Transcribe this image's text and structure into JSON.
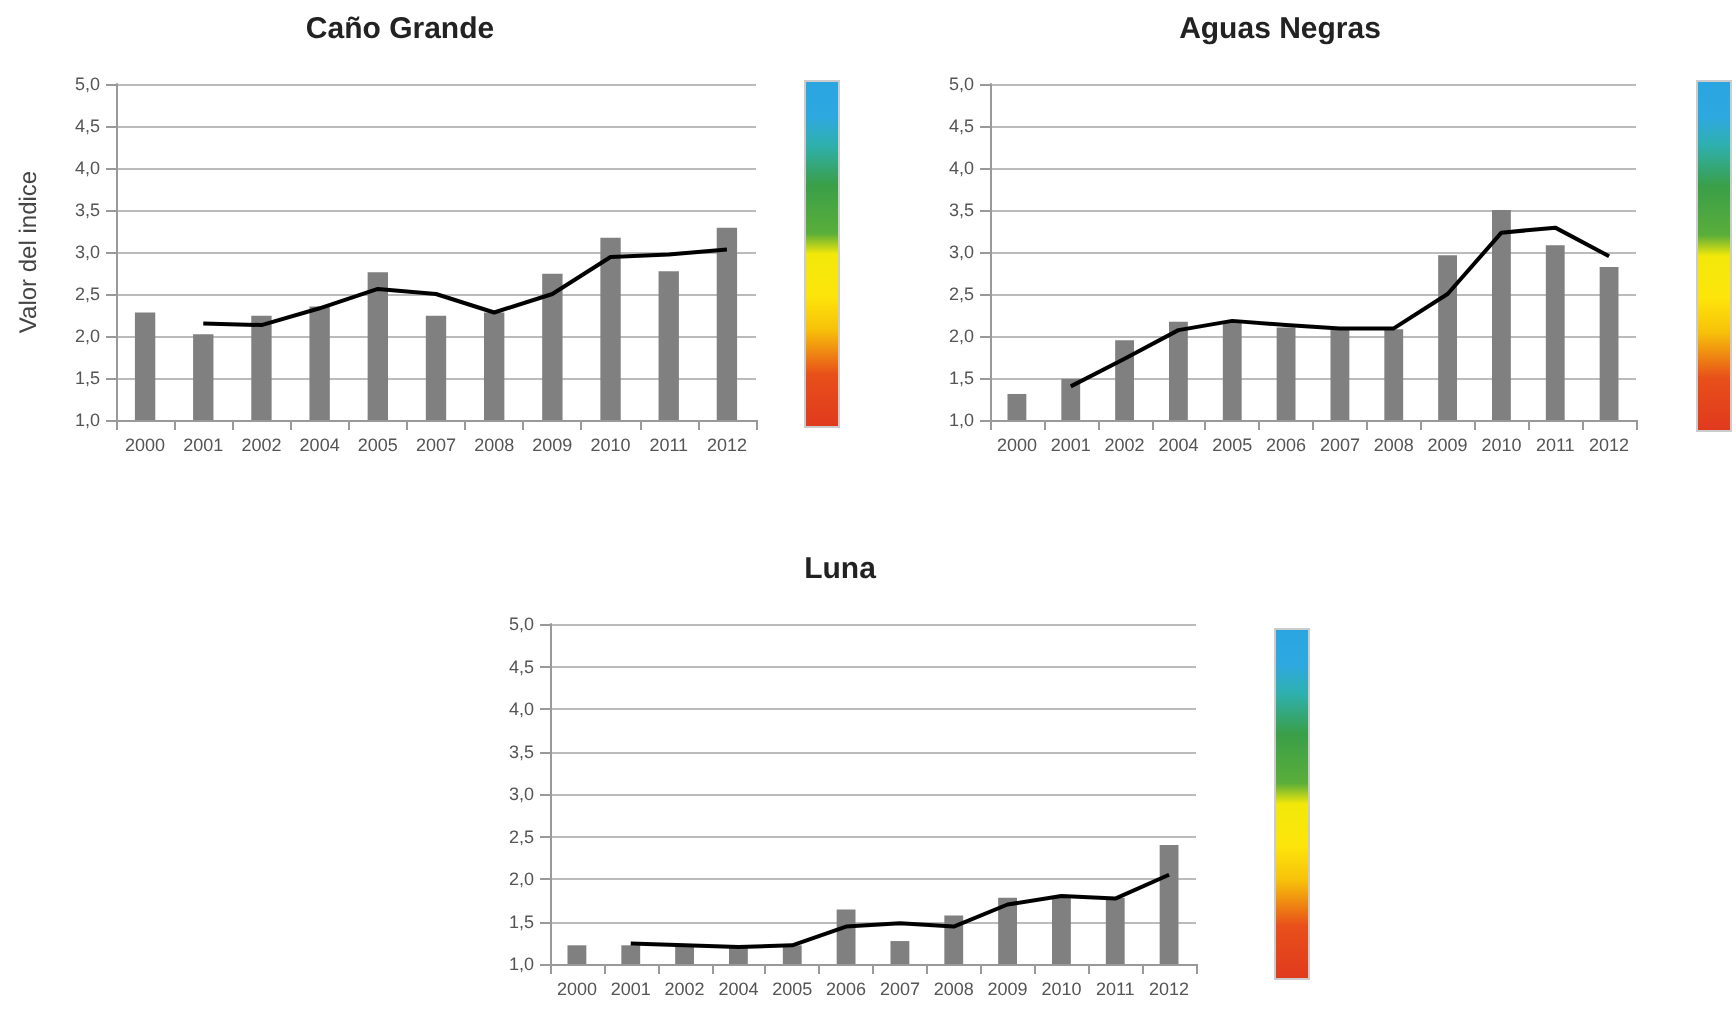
{
  "chart_data": [
    {
      "type": "bar",
      "title": "Caño Grande",
      "ylabel": "Valor del indice",
      "categories": [
        "2000",
        "2001",
        "2002",
        "2004",
        "2005",
        "2007",
        "2008",
        "2009",
        "2010",
        "2011",
        "2012"
      ],
      "series": [
        {
          "color": "#808080",
          "values": [
            2.28,
            2.02,
            2.24,
            2.35,
            2.76,
            2.24,
            2.28,
            2.74,
            3.17,
            2.77,
            3.29
          ]
        },
        {
          "type": "line",
          "color": "#000000",
          "values": [
            null,
            2.15,
            2.13,
            2.33,
            2.56,
            2.5,
            2.28,
            2.5,
            2.94,
            2.97,
            3.03
          ]
        }
      ],
      "ylim": [
        1,
        5
      ],
      "yticks": [
        {
          "value": 1,
          "label": "1,0"
        },
        {
          "value": 1.5,
          "label": "1,5"
        },
        {
          "value": 2,
          "label": "2,0"
        },
        {
          "value": 2.5,
          "label": "2,5"
        },
        {
          "value": 3,
          "label": "3,0"
        },
        {
          "value": 3.5,
          "label": "3,5"
        },
        {
          "value": 4,
          "label": "4,0"
        },
        {
          "value": 4.5,
          "label": "4,5"
        },
        {
          "value": 5,
          "label": "5,0"
        }
      ],
      "grid": "y",
      "marker": "none"
    },
    {
      "type": "bar",
      "title": "Aguas Negras",
      "categories": [
        "2000",
        "2001",
        "2002",
        "2004",
        "2005",
        "2006",
        "2007",
        "2008",
        "2009",
        "2010",
        "2011",
        "2012"
      ],
      "series": [
        {
          "color": "#808080",
          "values": [
            1.31,
            1.49,
            1.95,
            2.17,
            2.17,
            2.1,
            2.08,
            2.08,
            2.96,
            3.5,
            3.08,
            2.82
          ]
        },
        {
          "type": "line",
          "color": "#000000",
          "values": [
            null,
            1.4,
            1.73,
            2.07,
            2.18,
            2.13,
            2.09,
            2.09,
            2.5,
            3.23,
            3.29,
            2.95
          ]
        }
      ],
      "ylim": [
        1,
        5
      ],
      "yticks": [
        {
          "value": 1,
          "label": "1,0"
        },
        {
          "value": 1.5,
          "label": "1,5"
        },
        {
          "value": 2,
          "label": "2,0"
        },
        {
          "value": 2.5,
          "label": "2,5"
        },
        {
          "value": 3,
          "label": "3,0"
        },
        {
          "value": 3.5,
          "label": "3,5"
        },
        {
          "value": 4,
          "label": "4,0"
        },
        {
          "value": 4.5,
          "label": "4,5"
        },
        {
          "value": 5,
          "label": "5,0"
        }
      ],
      "grid": "y",
      "marker": "none"
    },
    {
      "type": "bar",
      "title": "Luna",
      "categories": [
        "2000",
        "2001",
        "2002",
        "2004",
        "2005",
        "2006",
        "2007",
        "2008",
        "2009",
        "2010",
        "2011",
        "2012"
      ],
      "series": [
        {
          "color": "#808080",
          "values": [
            1.22,
            1.22,
            1.22,
            1.2,
            1.22,
            1.64,
            1.27,
            1.57,
            1.78,
            1.78,
            1.78,
            2.4
          ]
        },
        {
          "type": "line",
          "color": "#000000",
          "values": [
            null,
            1.24,
            1.22,
            1.2,
            1.22,
            1.44,
            1.48,
            1.44,
            1.7,
            1.8,
            1.77,
            2.05
          ]
        }
      ],
      "ylim": [
        1,
        5
      ],
      "yticks": [
        {
          "value": 1,
          "label": "1,0"
        },
        {
          "value": 1.5,
          "label": "1,5"
        },
        {
          "value": 2,
          "label": "2,0"
        },
        {
          "value": 2.5,
          "label": "2,5"
        },
        {
          "value": 3,
          "label": "3,0"
        },
        {
          "value": 3.5,
          "label": "3,5"
        },
        {
          "value": 4,
          "label": "4,0"
        },
        {
          "value": 4.5,
          "label": "4,5"
        },
        {
          "value": 5,
          "label": "5,0"
        }
      ],
      "grid": "y",
      "marker": "none"
    }
  ]
}
